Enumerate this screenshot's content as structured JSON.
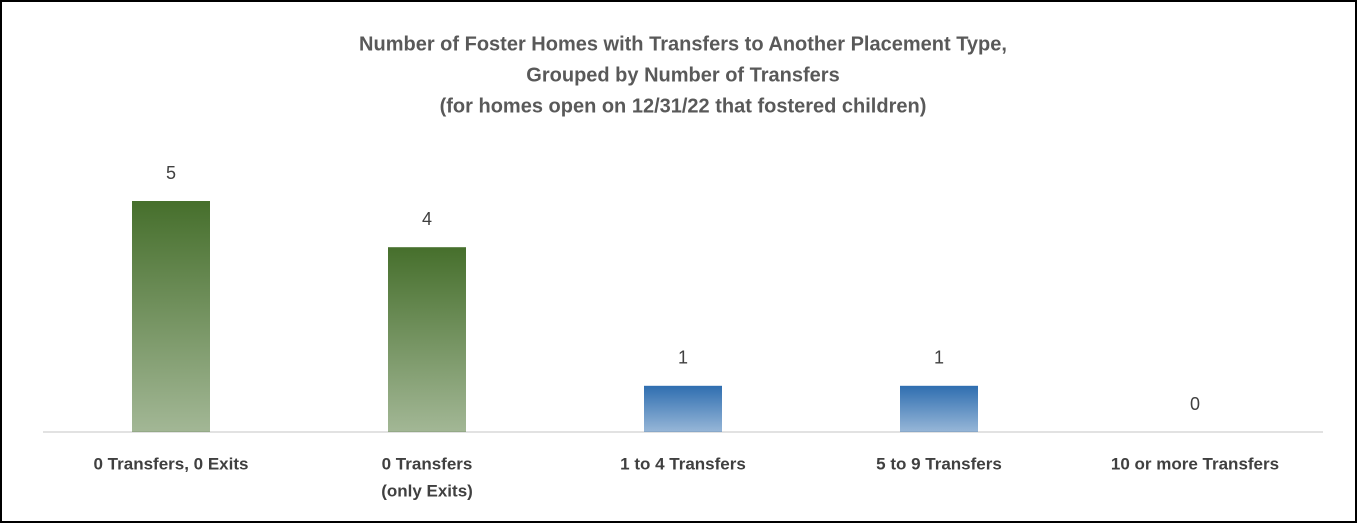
{
  "chart_data": {
    "type": "bar",
    "title": [
      "Number of Foster Homes with Transfers to Another Placement Type,",
      "Grouped by Number of Transfers",
      "(for homes open on 12/31/22 that fostered children)"
    ],
    "categories": [
      [
        "0 Transfers, 0 Exits"
      ],
      [
        "0 Transfers",
        "(only Exits)"
      ],
      [
        "1 to 4  Transfers"
      ],
      [
        "5 to 9 Transfers"
      ],
      [
        "10 or more Transfers"
      ]
    ],
    "values": [
      5,
      4,
      1,
      1,
      0
    ],
    "colors": [
      "#466f2c",
      "#466f2c",
      "#2f6eb0",
      "#2f6eb0",
      "#2f6eb0"
    ]
  }
}
